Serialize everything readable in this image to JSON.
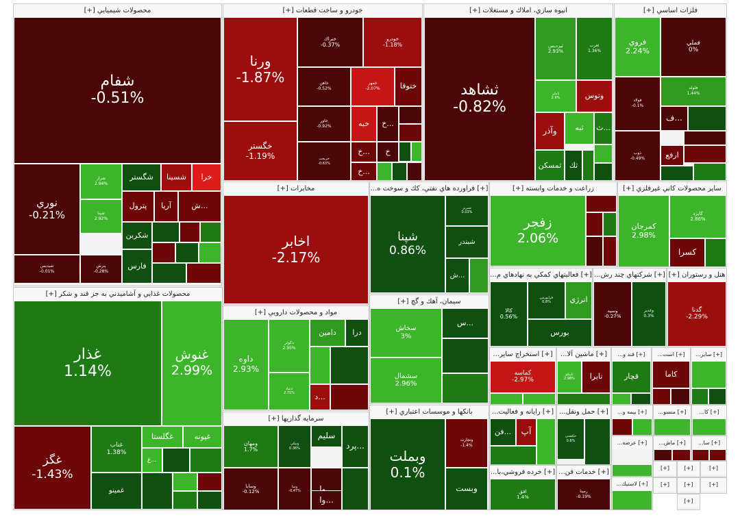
{
  "colors": {
    "deep_red": "#4b0606",
    "dark_red": "#6e0808",
    "red": "#9c0d0d",
    "bright_red": "#c51515",
    "vivid_red": "#e01b1b",
    "dark_green": "#0f4f0f",
    "green": "#1e7a14",
    "mid_green": "#2e9a1e",
    "light_green": "#3db52a"
  },
  "sectors": [
    {
      "title": "محصولات شيميايي [+]",
      "tiles": [
        {
          "name": "شفام",
          "change": "-0.51%"
        },
        {
          "name": "نوري",
          "change": "-0.21%"
        },
        {
          "name": "شگستر",
          "change": ""
        },
        {
          "name": "شسينا",
          "change": ""
        },
        {
          "name": "خرا",
          "change": ""
        },
        {
          "name": "پترول",
          "change": ""
        },
        {
          "name": "آريا",
          "change": ""
        },
        {
          "name": "ش...",
          "change": ""
        },
        {
          "name": "شکربن",
          "change": ""
        },
        {
          "name": "فارس",
          "change": ""
        },
        {
          "name": "شراز",
          "change": "2.94%"
        },
        {
          "name": "شپنا",
          "change": "2.92%"
        },
        {
          "name": "شيديس",
          "change": "-0.01%"
        },
        {
          "name": "پترش",
          "change": "-0.28%"
        }
      ]
    },
    {
      "title": "خودرو و ساخت قطعات [+]",
      "tiles": [
        {
          "name": "ورنا",
          "change": "-1.87%"
        },
        {
          "name": "خگستر",
          "change": "-1.19%"
        },
        {
          "name": "خنراك",
          "change": "-0.37%"
        },
        {
          "name": "خودرو",
          "change": "-1.18%"
        },
        {
          "name": "خاهن",
          "change": "-0.52%"
        },
        {
          "name": "خمهر",
          "change": "-2.07%"
        },
        {
          "name": "ختوقا",
          "change": ""
        },
        {
          "name": "خاور",
          "change": "-0.92%"
        },
        {
          "name": "خبه",
          "change": ""
        },
        {
          "name": "خ...",
          "change": ""
        },
        {
          "name": "خريخت",
          "change": "-0.63%"
        },
        {
          "name": "خ...",
          "change": ""
        },
        {
          "name": "خ",
          "change": ""
        },
        {
          "name": "خ...",
          "change": ""
        }
      ]
    },
    {
      "title": "انبوه سازي، املاك و مستغلات [+]",
      "tiles": [
        {
          "name": "ثشاهد",
          "change": "-0.82%"
        },
        {
          "name": "ثپرديس",
          "change": "2.93%"
        },
        {
          "name": "ثغرب",
          "change": "1.36%"
        },
        {
          "name": "ثامان",
          "change": "2.9%"
        },
        {
          "name": "وتوس",
          "change": ""
        },
        {
          "name": "وآذر",
          "change": ""
        },
        {
          "name": "ثبه",
          "change": ""
        },
        {
          "name": "ث...",
          "change": ""
        },
        {
          "name": "ثمسكن",
          "change": ""
        },
        {
          "name": "ثك",
          "change": ""
        }
      ]
    },
    {
      "title": "فلزات اساسي [+]",
      "tiles": [
        {
          "name": "فروي",
          "change": "2.24%"
        },
        {
          "name": "فملي",
          "change": "0%"
        },
        {
          "name": "فولاد",
          "change": "-0.1%"
        },
        {
          "name": "فلوله",
          "change": "1.44%"
        },
        {
          "name": "ف...",
          "change": ""
        },
        {
          "name": "ذوب",
          "change": "-0.49%"
        },
        {
          "name": "ارفع",
          "change": ""
        }
      ]
    },
    {
      "title": "مخابرات [+]",
      "tiles": [
        {
          "name": "اخابر",
          "change": "-2.17%"
        }
      ]
    },
    {
      "title": "[+] فراورده هاي نفتي، كك و سوخت ه...",
      "tiles": [
        {
          "name": "شپنا",
          "change": "0.86%"
        },
        {
          "name": "شبريز",
          "change": "0.03%"
        },
        {
          "name": "شبندر",
          "change": ""
        },
        {
          "name": "ش...",
          "change": ""
        }
      ]
    },
    {
      "title": "زراعت و خدمات وابسته [+]",
      "tiles": [
        {
          "name": "زفجر",
          "change": "2.06%"
        }
      ]
    },
    {
      "title": "ساير محصولات كاني غيرفلزي [+]",
      "tiles": [
        {
          "name": "كمرجان",
          "change": "2.98%"
        },
        {
          "name": "كايزد",
          "change": "2.86%"
        },
        {
          "name": "كسرا",
          "change": ""
        }
      ]
    },
    {
      "title": "محصولات غذايي و آشاميدني به جز قند و شكر [+]",
      "tiles": [
        {
          "name": "غذار",
          "change": "1.14%"
        },
        {
          "name": "غنوش",
          "change": "2.99%"
        },
        {
          "name": "غگز",
          "change": "-1.43%"
        },
        {
          "name": "غناب",
          "change": "1.38%"
        },
        {
          "name": "غگلستا",
          "change": ""
        },
        {
          "name": "غپونه",
          "change": ""
        },
        {
          "name": "غ...",
          "change": ""
        },
        {
          "name": "غمينو",
          "change": ""
        }
      ]
    },
    {
      "title": "مواد و محصولات دارويي [+]",
      "tiles": [
        {
          "name": "داوه",
          "change": "2.93%"
        },
        {
          "name": "دكوثر",
          "change": "2.95%"
        },
        {
          "name": "دامين",
          "change": ""
        },
        {
          "name": "درا",
          "change": ""
        },
        {
          "name": "دتماد",
          "change": "2.71%"
        },
        {
          "name": "د...",
          "change": ""
        }
      ]
    },
    {
      "title": "سيمان، آهك و گچ [+]",
      "tiles": [
        {
          "name": "سخاش",
          "change": "3%"
        },
        {
          "name": "س...",
          "change": ""
        },
        {
          "name": "سشمال",
          "change": "2.96%"
        }
      ]
    },
    {
      "title": "[+] فعاليتهاي كمكي به نهادهاي م...",
      "tiles": [
        {
          "name": "كالا",
          "change": "0.56%"
        },
        {
          "name": "فرابورس",
          "change": "0.8%"
        },
        {
          "name": "انرژي",
          "change": ""
        },
        {
          "name": "بورس",
          "change": ""
        }
      ]
    },
    {
      "title": "[+] شركتهاي چند رش...",
      "tiles": [
        {
          "name": "وسپه",
          "change": "-0.27%"
        },
        {
          "name": "وغدير",
          "change": "0.3%"
        }
      ]
    },
    {
      "title": "هتل و رستوران [+]",
      "tiles": [
        {
          "name": "گدنا",
          "change": "-2.29%"
        }
      ]
    },
    {
      "title": "سرمايه گذاريها [+]",
      "tiles": [
        {
          "name": "ومهان",
          "change": "1.7%"
        },
        {
          "name": "ونيكي",
          "change": "0.36%"
        },
        {
          "name": "سليم",
          "change": ""
        },
        {
          "name": "پرد...",
          "change": ""
        },
        {
          "name": "وسايا",
          "change": "-0.12%"
        },
        {
          "name": "وسا",
          "change": "-0.47%"
        },
        {
          "name": "وا...",
          "change": ""
        },
        {
          "name": "وا...",
          "change": ""
        }
      ]
    },
    {
      "title": "بانكها و موسسات اعتباري [+]",
      "tiles": [
        {
          "name": "وبملت",
          "change": "0.1%"
        },
        {
          "name": "وتجارت",
          "change": "-1.4%"
        },
        {
          "name": "وبست",
          "change": ""
        }
      ]
    },
    {
      "title": "[+] استخراج ساير...",
      "tiles": [
        {
          "name": "كماسه",
          "change": "-2.97%"
        }
      ]
    },
    {
      "title": "[+] ماشين آلا...",
      "tiles": [
        {
          "name": "تاپيكو",
          "change": "2.98%"
        },
        {
          "name": "تايرا",
          "change": ""
        }
      ]
    },
    {
      "title": "[+] قند و...",
      "tiles": [
        {
          "name": "قچار",
          "change": ""
        }
      ]
    },
    {
      "title": "[+] است...",
      "tiles": [
        {
          "name": "كاما",
          "change": ""
        }
      ]
    },
    {
      "title": "[+] ساير...",
      "tiles": []
    },
    {
      "title": "[+] رايانه و فعاليت...",
      "tiles": [
        {
          "name": "آپ",
          "change": ""
        },
        {
          "name": "فن...",
          "change": ""
        }
      ]
    },
    {
      "title": "[+] حمل ونقل...",
      "tiles": [
        {
          "name": "حكشتي",
          "change": "0.8%"
        }
      ]
    },
    {
      "title": "[+] بيمه و...",
      "tiles": []
    },
    {
      "title": "[+] منسو...",
      "tiles": []
    },
    {
      "title": "[+] كا...",
      "tiles": []
    },
    {
      "title": "[+] عرضه...",
      "tiles": []
    },
    {
      "title": "[+] ماش...",
      "tiles": []
    },
    {
      "title": "[+] سا...",
      "tiles": []
    },
    {
      "title": "[+] خرده فروشي،با...",
      "tiles": [
        {
          "name": "افق",
          "change": "1.4%"
        }
      ]
    },
    {
      "title": "[+] خدمات فن...",
      "tiles": [
        {
          "name": "رمپنا",
          "change": "-0.19%"
        }
      ]
    },
    {
      "title": "[+] لاستيك...",
      "tiles": []
    },
    {
      "title": "[+]",
      "tiles": []
    },
    {
      "title": "[+]",
      "tiles": []
    },
    {
      "title": "[+]",
      "tiles": []
    },
    {
      "title": "[+]",
      "tiles": []
    },
    {
      "title": "[+]",
      "tiles": []
    },
    {
      "title": "[+]",
      "tiles": []
    },
    {
      "title": "[+]",
      "tiles": []
    }
  ]
}
